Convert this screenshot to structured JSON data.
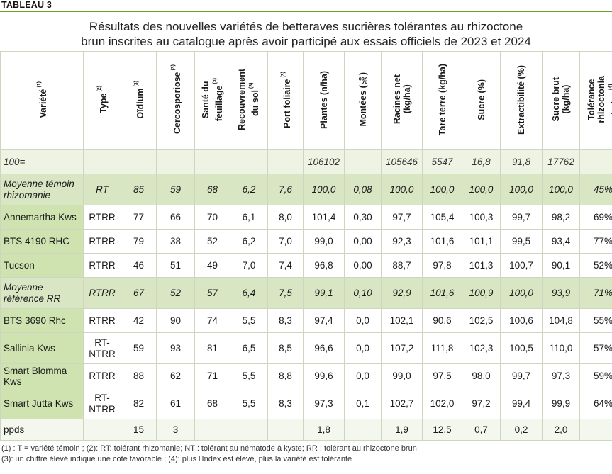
{
  "tag": "TABLEAU 3",
  "title": {
    "line1": "Résultats des nouvelles variétés de betteraves sucrières tolérantes au rhizoctone",
    "line2": "brun inscrites au catalogue  après avoir participé aux essais officiels de 2023 et 2024"
  },
  "headers": [
    {
      "label": "Variété",
      "sup": "(1)"
    },
    {
      "label": "Type",
      "sup": "(2)"
    },
    {
      "label": "Oïdium",
      "sup": "(3)"
    },
    {
      "label": "Cercosporiose",
      "sup": "(3)"
    },
    {
      "label": "Santé du|feuillage",
      "sup": "(3)"
    },
    {
      "label": "Recouvrement|du sol",
      "sup": "(3)"
    },
    {
      "label": "Port  foliaire",
      "sup": "(3)"
    },
    {
      "label": "Plantes (n/ha)",
      "sup": ""
    },
    {
      "label": "Montées (‰)",
      "sup": ""
    },
    {
      "label": "Racines net|(kg/ha)",
      "sup": ""
    },
    {
      "label": "Tare terre (kg/ha)",
      "sup": ""
    },
    {
      "label": "Sucre (%)",
      "sup": ""
    },
    {
      "label": "Extractibilité (%)",
      "sup": ""
    },
    {
      "label": "Sucre brut|(kg/ha)",
      "sup": ""
    },
    {
      "label": "Tolérance|rhizoctonia|Index",
      "sup": "(4)"
    }
  ],
  "rows": [
    {
      "kind": "base",
      "cells": [
        "100=",
        "",
        "",
        "",
        "",
        "",
        "",
        "106102",
        "",
        "105646",
        "5547",
        "16,8",
        "91,8",
        "17762",
        ""
      ]
    },
    {
      "kind": "ref",
      "cells": [
        "Moyenne témoin rhizomanie",
        "RT",
        "85",
        "59",
        "68",
        "6,2",
        "7,6",
        "100,0",
        "0,08",
        "100,0",
        "100,0",
        "100,0",
        "100,0",
        "100,0",
        "45%"
      ]
    },
    {
      "kind": "var",
      "cells": [
        "Annemartha Kws",
        "RTRR",
        "77",
        "66",
        "70",
        "6,1",
        "8,0",
        "101,4",
        "0,30",
        "97,7",
        "105,4",
        "100,3",
        "99,7",
        "98,2",
        "69%"
      ]
    },
    {
      "kind": "var",
      "cells": [
        "BTS 4190 RHC",
        "RTRR",
        "79",
        "38",
        "52",
        "6,2",
        "7,0",
        "99,0",
        "0,00",
        "92,3",
        "101,6",
        "101,1",
        "99,5",
        "93,4",
        "77%"
      ]
    },
    {
      "kind": "var",
      "cells": [
        "Tucson",
        "RTRR",
        "46",
        "51",
        "49",
        "7,0",
        "7,4",
        "96,8",
        "0,00",
        "88,7",
        "97,8",
        "101,3",
        "100,7",
        "90,1",
        "52%"
      ]
    },
    {
      "kind": "ref",
      "cells": [
        "Moyenne référence RR",
        "RTRR",
        "67",
        "52",
        "57",
        "6,4",
        "7,5",
        "99,1",
        "0,10",
        "92,9",
        "101,6",
        "100,9",
        "100,0",
        "93,9",
        "71%"
      ]
    },
    {
      "kind": "var",
      "cells": [
        "BTS 3690 Rhc",
        "RTRR",
        "42",
        "90",
        "74",
        "5,5",
        "8,3",
        "97,4",
        "0,0",
        "102,1",
        "90,6",
        "102,5",
        "100,6",
        "104,8",
        "55%"
      ]
    },
    {
      "kind": "var",
      "cells": [
        "Sallinia Kws",
        "RT-NTRR",
        "59",
        "93",
        "81",
        "6,5",
        "8,5",
        "96,6",
        "0,0",
        "107,2",
        "111,8",
        "102,3",
        "100,5",
        "110,0",
        "57%"
      ]
    },
    {
      "kind": "var",
      "cells": [
        "Smart Blomma Kws",
        "RTRR",
        "88",
        "62",
        "71",
        "5,5",
        "8,8",
        "99,6",
        "0,0",
        "99,0",
        "97,5",
        "98,0",
        "99,7",
        "97,3",
        "59%"
      ]
    },
    {
      "kind": "var",
      "cells": [
        "Smart Jutta Kws",
        "RT-NTRR",
        "82",
        "61",
        "68",
        "5,5",
        "8,3",
        "97,3",
        "0,1",
        "102,7",
        "102,0",
        "97,2",
        "99,4",
        "99,9",
        "64%"
      ]
    },
    {
      "kind": "ppds",
      "cells": [
        "ppds",
        "",
        "15",
        "3",
        "",
        "",
        "",
        "1,8",
        "",
        "1,9",
        "12,5",
        "0,7",
        "0,2",
        "2,0",
        ""
      ]
    }
  ],
  "notes": [
    "(1) : T = variété témoin ; (2): RT: tolérant rhizomanie; NT : tolérant au nématode à kyste; RR : tolérant au rhizoctone brun",
    "(3): un chiffre élevé indique une cote favorable ; (4): plus l'Index est élevé, plus la variété est tolérante"
  ]
}
